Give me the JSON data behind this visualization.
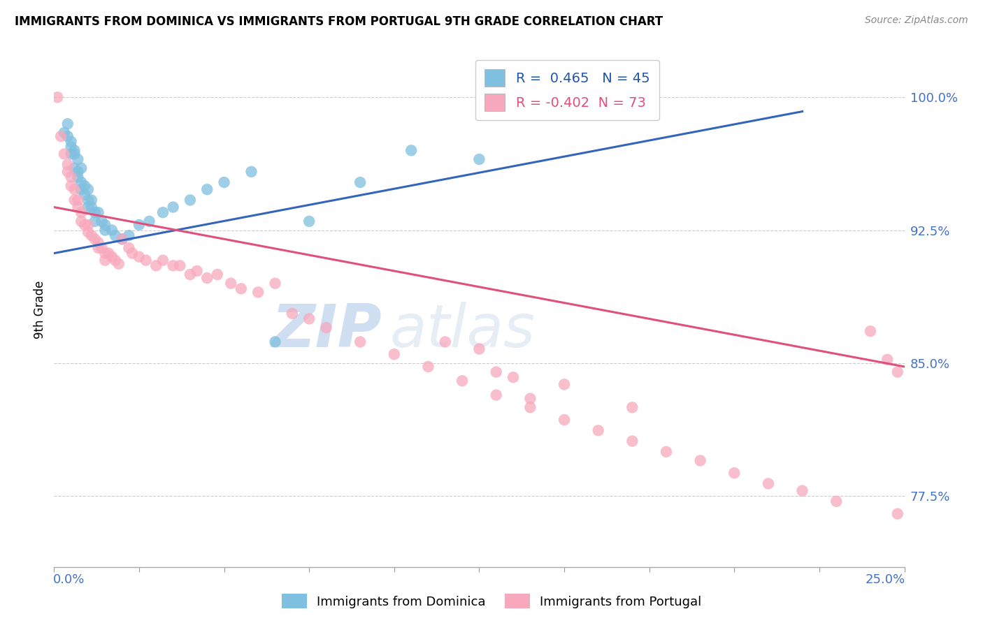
{
  "title": "IMMIGRANTS FROM DOMINICA VS IMMIGRANTS FROM PORTUGAL 9TH GRADE CORRELATION CHART",
  "source": "Source: ZipAtlas.com",
  "ylabel": "9th Grade",
  "ytick_labels": [
    "100.0%",
    "92.5%",
    "85.0%",
    "77.5%"
  ],
  "ytick_values": [
    1.0,
    0.925,
    0.85,
    0.775
  ],
  "xlim": [
    0.0,
    0.25
  ],
  "ylim": [
    0.735,
    1.025
  ],
  "blue_R": "0.465",
  "blue_N": "45",
  "pink_R": "-0.402",
  "pink_N": "73",
  "blue_scatter_x": [
    0.003,
    0.004,
    0.004,
    0.005,
    0.005,
    0.005,
    0.006,
    0.006,
    0.006,
    0.007,
    0.007,
    0.007,
    0.008,
    0.008,
    0.008,
    0.009,
    0.009,
    0.01,
    0.01,
    0.01,
    0.011,
    0.011,
    0.012,
    0.012,
    0.013,
    0.014,
    0.015,
    0.015,
    0.017,
    0.018,
    0.02,
    0.022,
    0.025,
    0.028,
    0.032,
    0.035,
    0.04,
    0.045,
    0.05,
    0.058,
    0.065,
    0.075,
    0.09,
    0.105,
    0.125
  ],
  "blue_scatter_y": [
    0.98,
    0.985,
    0.978,
    0.975,
    0.972,
    0.968,
    0.97,
    0.968,
    0.96,
    0.965,
    0.958,
    0.955,
    0.96,
    0.952,
    0.948,
    0.95,
    0.945,
    0.948,
    0.942,
    0.938,
    0.942,
    0.938,
    0.935,
    0.93,
    0.935,
    0.93,
    0.928,
    0.925,
    0.925,
    0.922,
    0.92,
    0.922,
    0.928,
    0.93,
    0.935,
    0.938,
    0.942,
    0.948,
    0.952,
    0.958,
    0.862,
    0.93,
    0.952,
    0.97,
    0.965
  ],
  "pink_scatter_x": [
    0.001,
    0.002,
    0.003,
    0.004,
    0.004,
    0.005,
    0.005,
    0.006,
    0.006,
    0.007,
    0.007,
    0.008,
    0.008,
    0.009,
    0.01,
    0.01,
    0.011,
    0.012,
    0.013,
    0.013,
    0.014,
    0.015,
    0.015,
    0.016,
    0.017,
    0.018,
    0.019,
    0.02,
    0.022,
    0.023,
    0.025,
    0.027,
    0.03,
    0.032,
    0.035,
    0.037,
    0.04,
    0.042,
    0.045,
    0.048,
    0.052,
    0.055,
    0.06,
    0.065,
    0.07,
    0.075,
    0.08,
    0.09,
    0.1,
    0.11,
    0.12,
    0.13,
    0.14,
    0.15,
    0.16,
    0.17,
    0.18,
    0.19,
    0.2,
    0.21,
    0.22,
    0.23,
    0.24,
    0.245,
    0.248,
    0.15,
    0.17,
    0.13,
    0.14,
    0.125,
    0.135,
    0.115,
    0.248
  ],
  "pink_scatter_y": [
    1.0,
    0.978,
    0.968,
    0.962,
    0.958,
    0.955,
    0.95,
    0.948,
    0.942,
    0.942,
    0.938,
    0.935,
    0.93,
    0.928,
    0.928,
    0.924,
    0.922,
    0.92,
    0.918,
    0.915,
    0.915,
    0.912,
    0.908,
    0.912,
    0.91,
    0.908,
    0.906,
    0.92,
    0.915,
    0.912,
    0.91,
    0.908,
    0.905,
    0.908,
    0.905,
    0.905,
    0.9,
    0.902,
    0.898,
    0.9,
    0.895,
    0.892,
    0.89,
    0.895,
    0.878,
    0.875,
    0.87,
    0.862,
    0.855,
    0.848,
    0.84,
    0.832,
    0.825,
    0.818,
    0.812,
    0.806,
    0.8,
    0.795,
    0.788,
    0.782,
    0.778,
    0.772,
    0.868,
    0.852,
    0.845,
    0.838,
    0.825,
    0.845,
    0.83,
    0.858,
    0.842,
    0.862,
    0.765
  ],
  "blue_line_x": [
    0.0,
    0.22
  ],
  "blue_line_y": [
    0.912,
    0.992
  ],
  "pink_line_x": [
    0.0,
    0.25
  ],
  "pink_line_y": [
    0.938,
    0.848
  ],
  "blue_color": "#7fbfdf",
  "pink_color": "#f8a8bc",
  "blue_line_color": "#3366bb",
  "pink_line_color": "#e0507a",
  "background_color": "#ffffff",
  "grid_color": "#cccccc"
}
